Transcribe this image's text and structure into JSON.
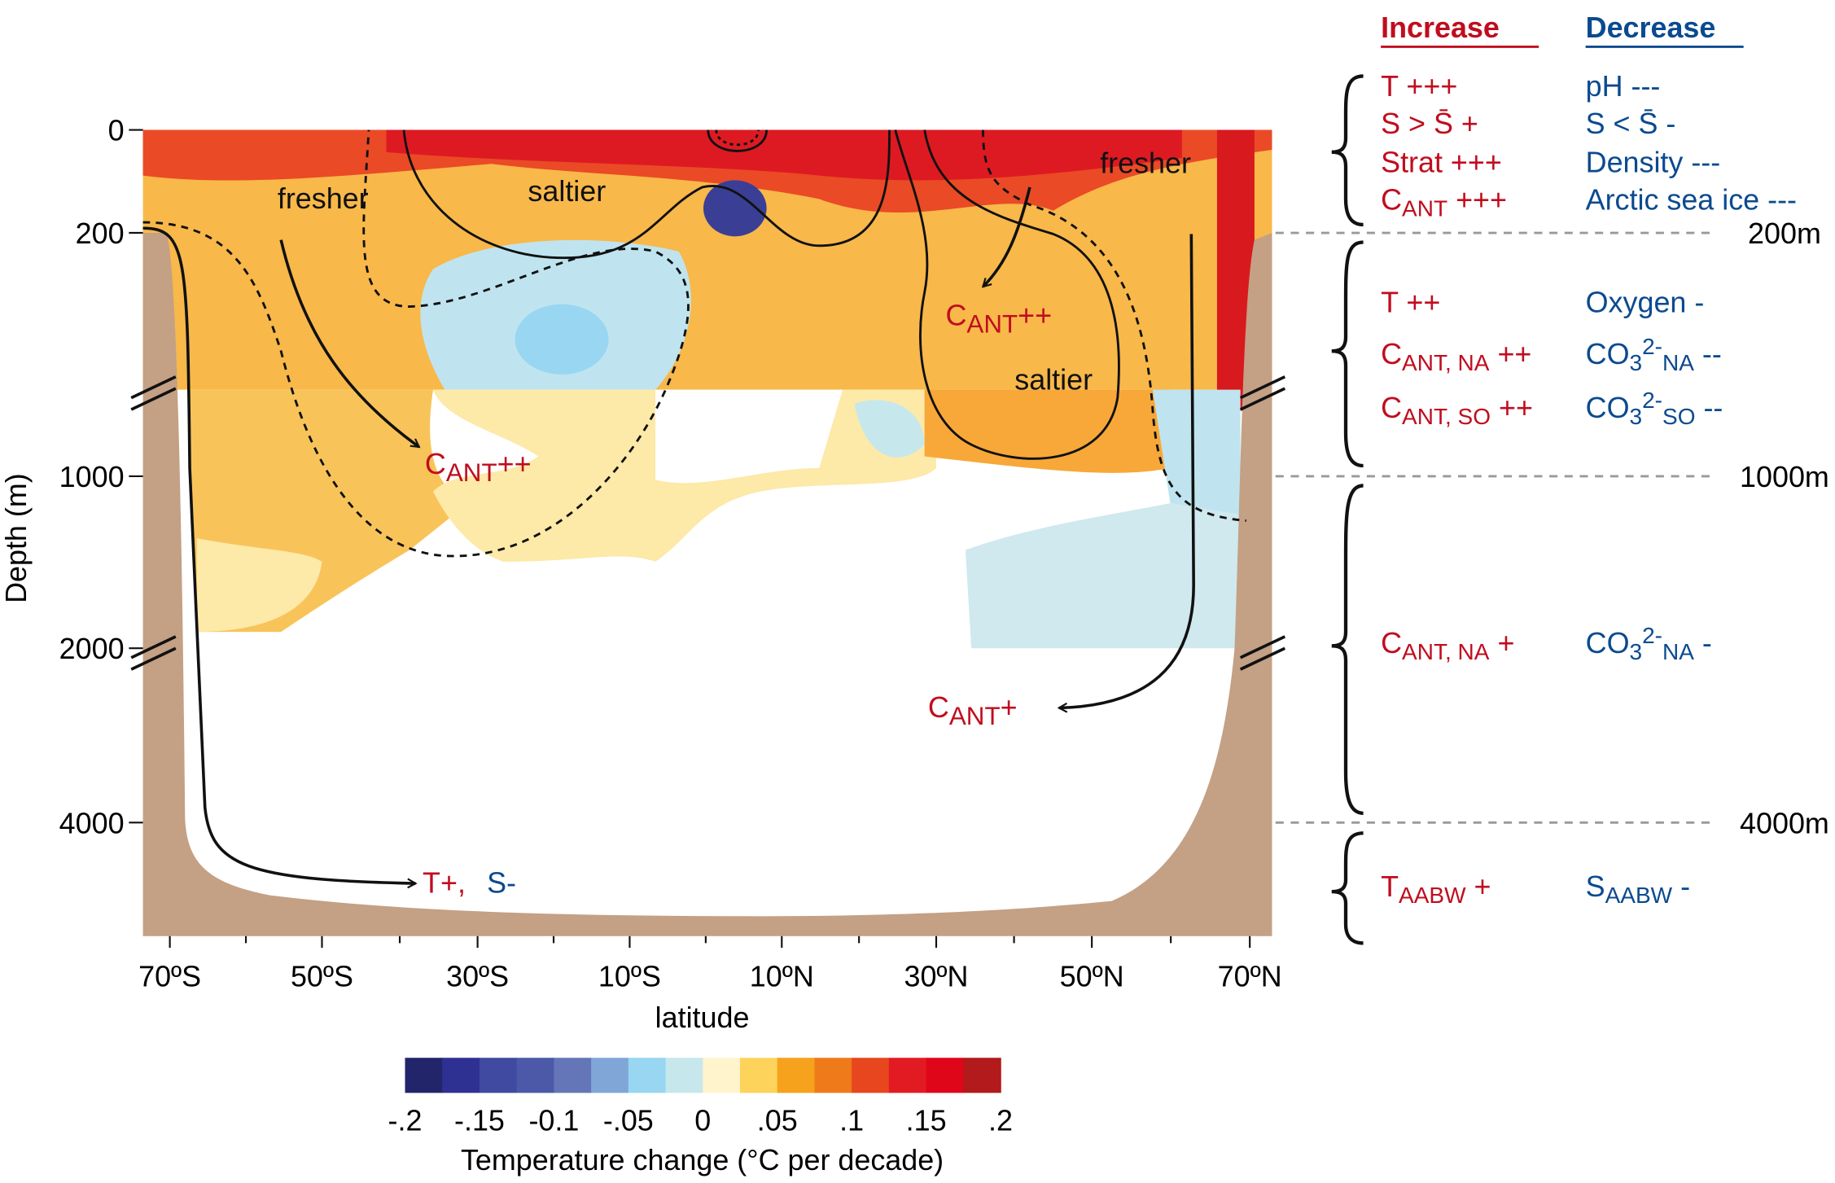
{
  "y_axis": {
    "label": "Depth (m)",
    "ticks": [
      "0",
      "200",
      "1000",
      "2000",
      "4000"
    ]
  },
  "x_axis": {
    "label": "latitude",
    "ticks": [
      "70ºS",
      "50ºS",
      "30ºS",
      "10ºS",
      "10ºN",
      "30ºN",
      "50ºN",
      "70ºN"
    ]
  },
  "colorbar": {
    "title": "Temperature change (°C per decade)",
    "colors": [
      "#23256b",
      "#2e3192",
      "#3f4aa0",
      "#4c59a8",
      "#6476b8",
      "#80a6d8",
      "#98d6f2",
      "#c6e8ec",
      "#fff4cc",
      "#fdd35c",
      "#f6a21c",
      "#ef7a1a",
      "#e8461e",
      "#e21b23",
      "#e0061a",
      "#b21a1c"
    ],
    "labels": [
      "-.2",
      "-.15",
      "-0.1",
      "-.05",
      "0",
      ".05",
      ".1",
      ".15",
      ".2"
    ]
  },
  "annotations": [
    {
      "color": "#111111",
      "segments": [
        {
          "text": "fresher"
        }
      ]
    },
    {
      "color": "#111111",
      "segments": [
        {
          "text": "saltier"
        }
      ]
    },
    {
      "color": "#111111",
      "segments": [
        {
          "text": "fresher"
        }
      ]
    },
    {
      "color": "#111111",
      "segments": [
        {
          "text": "saltier"
        }
      ]
    },
    {
      "color": "#c00d1e",
      "segments": [
        {
          "text": "C"
        },
        {
          "text": "ANT",
          "position": "subscript"
        },
        {
          "text": "++"
        }
      ]
    },
    {
      "color": "#c00d1e",
      "segments": [
        {
          "text": "C"
        },
        {
          "text": "ANT",
          "position": "subscript"
        },
        {
          "text": "++"
        }
      ]
    },
    {
      "color": "#c00d1e",
      "segments": [
        {
          "text": "C"
        },
        {
          "text": "ANT",
          "position": "subscript"
        },
        {
          "text": "+"
        }
      ]
    },
    {
      "color": "#c00d1e",
      "segments": [
        {
          "text": "T+,"
        }
      ]
    },
    {
      "color": "#0b4a8f",
      "segments": [
        {
          "text": "S-"
        }
      ]
    }
  ],
  "legend": {
    "increase_header": "Increase",
    "decrease_header": "Decrease",
    "increase_color": "#c00d1e",
    "decrease_color": "#0b4a8f",
    "depth_markers": [
      "200m",
      "1000m",
      "4000m"
    ],
    "rows": [
      {
        "increase": [
          {
            "text": "T +++"
          }
        ],
        "decrease": [
          {
            "text": "pH ---"
          }
        ]
      },
      {
        "increase": [
          {
            "text": "S > S̄ +"
          }
        ],
        "decrease": [
          {
            "text": "S < S̄ -"
          }
        ]
      },
      {
        "increase": [
          {
            "text": "Strat +++"
          }
        ],
        "decrease": [
          {
            "text": "Density ---"
          }
        ]
      },
      {
        "increase": [
          {
            "text": "C"
          },
          {
            "text": "ANT",
            "position": "subscript"
          },
          {
            "text": " +++"
          }
        ],
        "decrease": [
          {
            "text": "Arctic sea ice ---"
          }
        ]
      },
      {
        "increase": [
          {
            "text": "T ++"
          }
        ],
        "decrease": [
          {
            "text": "Oxygen -"
          }
        ]
      },
      {
        "increase": [
          {
            "text": "C"
          },
          {
            "text": "ANT, NA",
            "position": "subscript"
          },
          {
            "text": " ++"
          }
        ],
        "decrease": [
          {
            "text": "CO"
          },
          {
            "text": "3",
            "position": "subscript"
          },
          {
            "text": "2-",
            "position": "superscript"
          },
          {
            "text": "NA",
            "position": "subscript"
          },
          {
            "text": " --"
          }
        ]
      },
      {
        "increase": [
          {
            "text": "C"
          },
          {
            "text": "ANT, SO",
            "position": "subscript"
          },
          {
            "text": " ++"
          }
        ],
        "decrease": [
          {
            "text": "CO"
          },
          {
            "text": "3",
            "position": "subscript"
          },
          {
            "text": "2-",
            "position": "superscript"
          },
          {
            "text": "SO",
            "position": "subscript"
          },
          {
            "text": " --"
          }
        ]
      },
      {
        "increase": [
          {
            "text": "C"
          },
          {
            "text": "ANT, NA",
            "position": "subscript"
          },
          {
            "text": " +"
          }
        ],
        "decrease": [
          {
            "text": "CO"
          },
          {
            "text": "3",
            "position": "subscript"
          },
          {
            "text": "2-",
            "position": "superscript"
          },
          {
            "text": "NA",
            "position": "subscript"
          },
          {
            "text": " -"
          }
        ]
      },
      {
        "increase": [
          {
            "text": "T"
          },
          {
            "text": "AABW",
            "position": "subscript"
          },
          {
            "text": " +"
          }
        ],
        "decrease": [
          {
            "text": "S"
          },
          {
            "text": "AABW",
            "position": "subscript"
          },
          {
            "text": " -"
          }
        ]
      }
    ]
  }
}
